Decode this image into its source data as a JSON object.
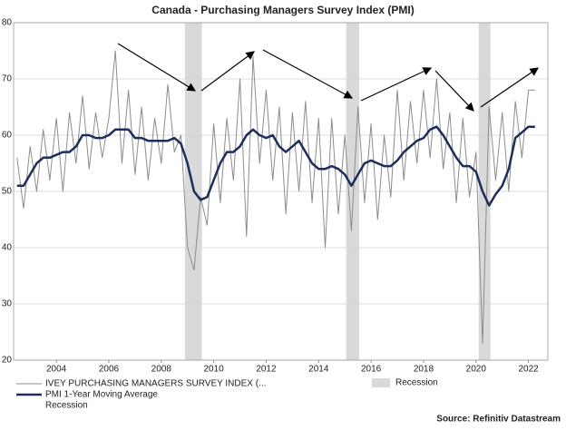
{
  "chart_data": {
    "type": "line",
    "title": "Canada - Purchasing Managers Survey Index (PMI)",
    "source": "Source: Refinitiv Datastream",
    "x": [
      2002.5,
      2002.75,
      2003,
      2003.25,
      2003.5,
      2003.75,
      2004,
      2004.25,
      2004.5,
      2004.75,
      2005,
      2005.25,
      2005.5,
      2005.75,
      2006,
      2006.25,
      2006.5,
      2006.75,
      2007,
      2007.25,
      2007.5,
      2007.75,
      2008,
      2008.25,
      2008.5,
      2008.75,
      2009,
      2009.25,
      2009.5,
      2009.75,
      2010,
      2010.25,
      2010.5,
      2010.75,
      2011,
      2011.25,
      2011.5,
      2011.75,
      2012,
      2012.25,
      2012.5,
      2012.75,
      2013,
      2013.25,
      2013.5,
      2013.75,
      2014,
      2014.25,
      2014.5,
      2014.75,
      2015,
      2015.25,
      2015.5,
      2015.75,
      2016,
      2016.25,
      2016.5,
      2016.75,
      2017,
      2017.25,
      2017.5,
      2017.75,
      2018,
      2018.25,
      2018.5,
      2018.75,
      2019,
      2019.25,
      2019.5,
      2019.75,
      2020,
      2020.25,
      2020.5,
      2020.75,
      2021,
      2021.25,
      2021.5,
      2021.75,
      2022,
      2022.25
    ],
    "series": [
      {
        "name": "IVEY PURCHASING MANAGERS SURVEY INDEX (...",
        "color": "#8c8c8c",
        "width": 1,
        "values": [
          56,
          47,
          58,
          50,
          61,
          52,
          63,
          50,
          64,
          55,
          67,
          54,
          64,
          56,
          63,
          75,
          55,
          68,
          53,
          65,
          52,
          63,
          55,
          69,
          57,
          60,
          40,
          36,
          49,
          44,
          62,
          48,
          63,
          52,
          70,
          42,
          74,
          55,
          68,
          52,
          65,
          46,
          64,
          50,
          66,
          48,
          63,
          40,
          63,
          46,
          60,
          43,
          65,
          48,
          62,
          45,
          60,
          49,
          68,
          52,
          66,
          55,
          68,
          56,
          70,
          54,
          64,
          48,
          63,
          49,
          57,
          23,
          65,
          52,
          64,
          50,
          66,
          56,
          68,
          68
        ]
      },
      {
        "name": "PMI 1-Year Moving Average",
        "color": "#1f2d5c",
        "width": 2.5,
        "values": [
          51,
          51,
          53,
          55,
          56,
          56,
          56.5,
          57,
          57,
          58,
          60,
          60,
          59.5,
          59.5,
          60,
          61,
          61,
          61,
          59.5,
          59.5,
          59,
          59,
          59,
          59,
          59.5,
          58.5,
          55,
          50,
          48.5,
          49,
          52,
          55,
          57,
          57,
          58,
          60,
          61,
          60,
          59.5,
          60,
          58,
          57,
          58,
          59,
          57,
          55,
          54,
          54,
          54.5,
          54,
          53,
          51,
          53,
          55,
          55.5,
          55,
          54.5,
          54.5,
          55.5,
          57,
          58,
          59,
          59.5,
          61,
          61.5,
          60,
          58,
          56,
          54.5,
          54.5,
          53.5,
          50,
          47.5,
          49.5,
          51,
          54,
          59.5,
          60.5,
          61.5,
          61.5
        ]
      }
    ],
    "recession": {
      "name": "Recession",
      "color": "#d9d9d9",
      "periods": [
        [
          2008.9,
          2009.55
        ],
        [
          2015.05,
          2015.55
        ],
        [
          2020.1,
          2020.55
        ]
      ]
    },
    "xlim": [
      2002.37,
      2022.74
    ],
    "xticks": [
      2004,
      2006,
      2008,
      2010,
      2012,
      2014,
      2016,
      2018,
      2020,
      2022
    ],
    "ylim": [
      20,
      80
    ],
    "yticks": [
      20,
      30,
      40,
      50,
      60,
      70,
      80
    ],
    "grid": true
  }
}
